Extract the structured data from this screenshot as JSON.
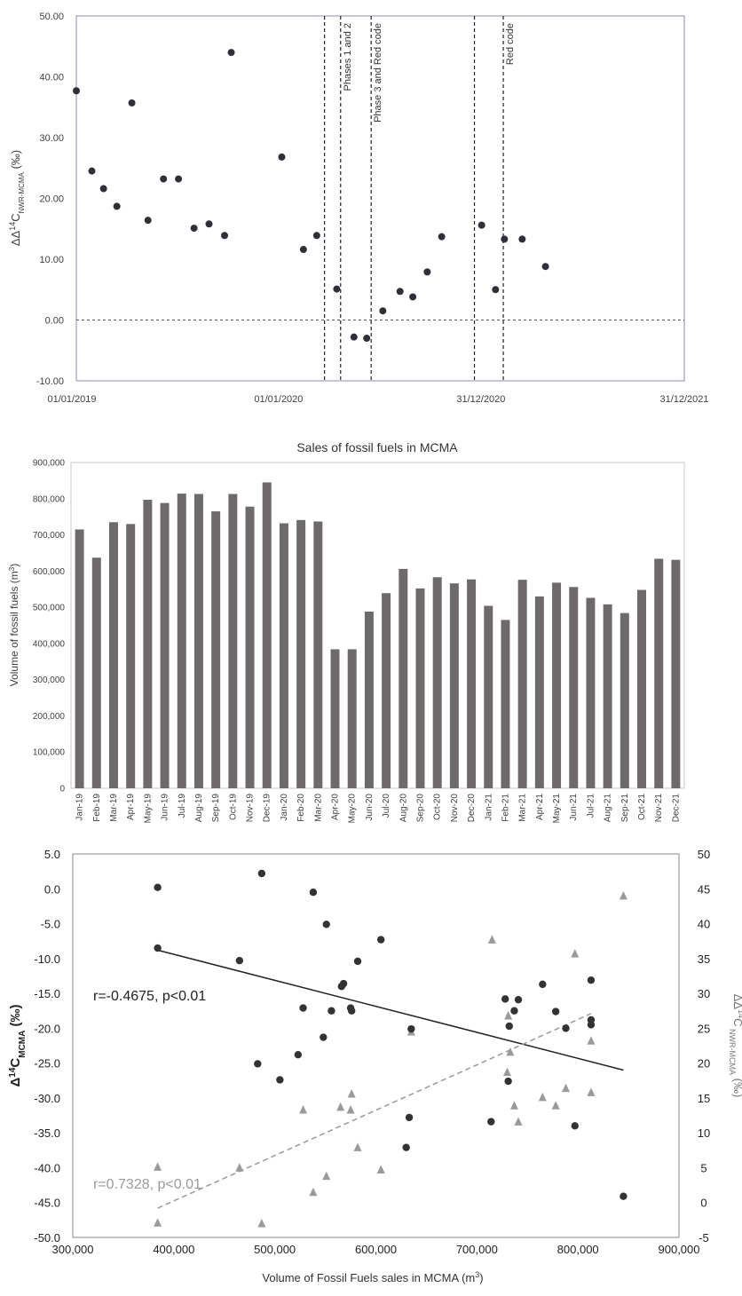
{
  "chart_data": [
    {
      "type": "scatter",
      "title": "",
      "ylabel": {
        "prefix": "ΔΔ",
        "sup": "14",
        "main": "C",
        "sub": "NWR-MCMA",
        "suffix": " (‰)"
      },
      "ylim": [
        -10,
        50
      ],
      "y_ticks": [
        "-10.00",
        "0.00",
        "10.00",
        "20.00",
        "30.00",
        "40.00",
        "50.00"
      ],
      "x_ticks": [
        "01/01/2019",
        "01/01/2020",
        "31/12/2020",
        "31/12/2021"
      ],
      "xlim": [
        "2019-01-01",
        "2021-12-31"
      ],
      "reference_line_y": 0,
      "phase_lines": [
        {
          "date": "2020-03-23"
        },
        {
          "date": "2020-04-21",
          "label": "Phases 1 and 2"
        },
        {
          "date": "2020-06-15",
          "label": "Phase 3 and Red code"
        },
        {
          "date": "2020-12-18"
        },
        {
          "date": "2021-02-08",
          "label": "Red code"
        }
      ],
      "points": [
        {
          "x": "2019-01-01",
          "y": 37.7
        },
        {
          "x": "2019-01-29",
          "y": 24.5
        },
        {
          "x": "2019-02-19",
          "y": 21.6
        },
        {
          "x": "2019-03-15",
          "y": 18.7
        },
        {
          "x": "2019-04-11",
          "y": 35.7
        },
        {
          "x": "2019-05-10",
          "y": 16.4
        },
        {
          "x": "2019-06-07",
          "y": 23.2
        },
        {
          "x": "2019-07-04",
          "y": 23.2
        },
        {
          "x": "2019-08-01",
          "y": 15.1
        },
        {
          "x": "2019-08-28",
          "y": 15.8
        },
        {
          "x": "2019-09-25",
          "y": 13.9
        },
        {
          "x": "2019-10-07",
          "y": 44.0
        },
        {
          "x": "2020-01-06",
          "y": 26.8
        },
        {
          "x": "2020-02-14",
          "y": 11.6
        },
        {
          "x": "2020-03-09",
          "y": 13.9
        },
        {
          "x": "2020-04-14",
          "y": 5.1
        },
        {
          "x": "2020-05-15",
          "y": -2.8
        },
        {
          "x": "2020-06-07",
          "y": -3.0
        },
        {
          "x": "2020-07-06",
          "y": 1.5
        },
        {
          "x": "2020-08-06",
          "y": 4.7
        },
        {
          "x": "2020-08-29",
          "y": 3.8
        },
        {
          "x": "2020-09-24",
          "y": 7.9
        },
        {
          "x": "2020-10-20",
          "y": 13.7
        },
        {
          "x": "2020-12-31",
          "y": 15.6
        },
        {
          "x": "2021-01-25",
          "y": 5.0
        },
        {
          "x": "2021-02-10",
          "y": 13.3
        },
        {
          "x": "2021-03-14",
          "y": 13.3
        },
        {
          "x": "2021-04-25",
          "y": 8.8
        }
      ]
    },
    {
      "type": "bar",
      "title": "Sales of fossil fuels in MCMA",
      "ylabel": {
        "main": "Volume of fossil fuels (m",
        "sup": "3",
        "suffix": ")"
      },
      "ylim": [
        0,
        900000
      ],
      "y_ticks": [
        "0",
        "100,000",
        "200,000",
        "300,000",
        "400,000",
        "500,000",
        "600,000",
        "700,000",
        "800,000",
        "900,000"
      ],
      "color": "#6e6a6a",
      "categories": [
        "Jan-19",
        "Feb-19",
        "Mar-19",
        "Apr-19",
        "May-19",
        "Jun-19",
        "Jul-19",
        "Aug-19",
        "Sep-19",
        "Oct-19",
        "Nov-19",
        "Dec-19",
        "Jan-20",
        "Feb-20",
        "Mar-20",
        "Apr-20",
        "May-20",
        "Jun-20",
        "Jul-20",
        "Aug-20",
        "Sep-20",
        "Oct-20",
        "Nov-20",
        "Dec-20",
        "Jan-21",
        "Feb-21",
        "Mar-21",
        "Apr-21",
        "May-21",
        "Jun-21",
        "Jul-21",
        "Aug-21",
        "Sep-21",
        "Oct-21",
        "Nov-21",
        "Dec-21"
      ],
      "values": [
        715000,
        637000,
        735000,
        730000,
        797000,
        788000,
        814000,
        813000,
        765000,
        813000,
        778000,
        845000,
        732000,
        741000,
        737000,
        384000,
        384000,
        488000,
        539000,
        606000,
        552000,
        583000,
        566000,
        577000,
        504000,
        465000,
        576000,
        530000,
        568000,
        556000,
        526000,
        508000,
        484000,
        548000,
        634000,
        631000
      ]
    },
    {
      "type": "scatter",
      "xlabel": {
        "main": "Volume of Fossil Fuels  sales in MCMA (m",
        "sup": "3",
        "suffix": ")"
      },
      "ylabel_left": {
        "prefix": "Δ",
        "sup": "14",
        "main": "C",
        "sub": "MCMA",
        "suffix": " (‰)"
      },
      "ylabel_right": {
        "prefix": "ΔΔ",
        "sup": "14",
        "main": "C",
        "sub": " NWR-MCMA",
        "suffix": " (‰)"
      },
      "xlim": [
        300000,
        900000
      ],
      "ylim_left": [
        -50,
        5
      ],
      "ylim_right": [
        -5,
        50
      ],
      "x_ticks": [
        "300,000",
        "400,000",
        "500,000",
        "600,000",
        "700,000",
        "800,000",
        "900,000"
      ],
      "y_ticks_left": [
        "-50.0",
        "-45.0",
        "-40.0",
        "-35.0",
        "-30.0",
        "-25.0",
        "-20.0",
        "-15.0",
        "-10.0",
        "-5.0",
        "0.0",
        "5.0"
      ],
      "y_ticks_right": [
        "-5",
        "0",
        "5",
        "10",
        "15",
        "20",
        "25",
        "30",
        "35",
        "40",
        "45",
        "50"
      ],
      "series": [
        {
          "marker": "circle",
          "color": "#333333",
          "axis": "left",
          "points": [
            [
              384000,
              0.2
            ],
            [
              384000,
              -8.5
            ],
            [
              465000,
              -10.3
            ],
            [
              487000,
              2.2
            ],
            [
              483000,
              -25.1
            ],
            [
              505000,
              -27.4
            ],
            [
              523000,
              -23.8
            ],
            [
              528000,
              -17.1
            ],
            [
              538000,
              -0.5
            ],
            [
              548000,
              -21.3
            ],
            [
              551000,
              -5.1
            ],
            [
              556000,
              -17.5
            ],
            [
              566000,
              -14.0
            ],
            [
              568000,
              -13.6
            ],
            [
              575000,
              -17.1
            ],
            [
              576000,
              -17.5
            ],
            [
              582000,
              -10.4
            ],
            [
              605000,
              -7.3
            ],
            [
              630000,
              -37.1
            ],
            [
              633000,
              -32.8
            ],
            [
              635000,
              -20.1
            ],
            [
              714000,
              -33.4
            ],
            [
              728000,
              -15.8
            ],
            [
              731000,
              -27.6
            ],
            [
              732000,
              -19.7
            ],
            [
              737000,
              -17.5
            ],
            [
              741000,
              -15.9
            ],
            [
              765000,
              -13.7
            ],
            [
              778000,
              -17.6
            ],
            [
              788000,
              -20.0
            ],
            [
              797000,
              -34.0
            ],
            [
              813000,
              -13.1
            ],
            [
              813000,
              -18.8
            ],
            [
              813000,
              -19.5
            ],
            [
              845000,
              -44.1
            ]
          ]
        },
        {
          "marker": "triangle",
          "color": "#9a9a9a",
          "axis": "right",
          "points": [
            [
              384000,
              5.1
            ],
            [
              384000,
              -2.9
            ],
            [
              465000,
              5.0
            ],
            [
              487000,
              -3.0
            ],
            [
              528000,
              13.3
            ],
            [
              538000,
              1.5
            ],
            [
              551000,
              3.8
            ],
            [
              565000,
              13.7
            ],
            [
              575000,
              13.3
            ],
            [
              576000,
              15.6
            ],
            [
              582000,
              7.9
            ],
            [
              605000,
              4.7
            ],
            [
              635000,
              24.5
            ],
            [
              715000,
              37.7
            ],
            [
              730000,
              18.7
            ],
            [
              731000,
              26.8
            ],
            [
              733000,
              21.6
            ],
            [
              737000,
              13.9
            ],
            [
              741000,
              11.6
            ],
            [
              765000,
              15.1
            ],
            [
              778000,
              13.9
            ],
            [
              788000,
              16.4
            ],
            [
              797000,
              35.7
            ],
            [
              813000,
              23.2
            ],
            [
              813000,
              15.8
            ],
            [
              845000,
              44.0
            ]
          ]
        }
      ],
      "trendlines": [
        {
          "axis": "left",
          "x": [
            384000,
            845000
          ],
          "y": [
            -8.8,
            -26.0
          ],
          "style": "solid",
          "color": "#222222"
        },
        {
          "axis": "right",
          "x": [
            384000,
            813000
          ],
          "y": [
            -0.8,
            27.1
          ],
          "style": "dashed",
          "color": "#9a9a9a"
        }
      ],
      "annotations": [
        "r=-0.4675, p<0.01",
        "r=0.7328, p<0.01"
      ]
    }
  ]
}
